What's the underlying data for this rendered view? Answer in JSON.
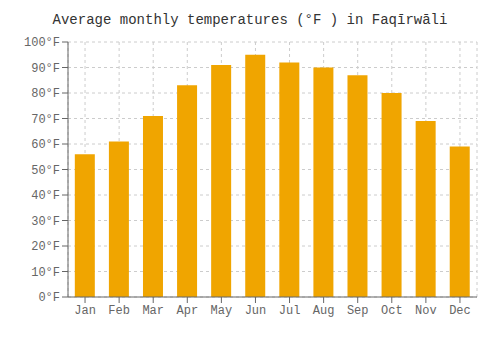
{
  "chart_data": {
    "type": "bar",
    "title": "Average monthly temperatures (°F ) in Faqīrwāli",
    "categories": [
      "Jan",
      "Feb",
      "Mar",
      "Apr",
      "May",
      "Jun",
      "Jul",
      "Aug",
      "Sep",
      "Oct",
      "Nov",
      "Dec"
    ],
    "values": [
      56,
      61,
      71,
      83,
      91,
      95,
      92,
      90,
      87,
      80,
      69,
      59
    ],
    "color": "#F0A500",
    "ylim": [
      0,
      100
    ],
    "yticks": [
      {
        "value": 0,
        "label": "0°F"
      },
      {
        "value": 10,
        "label": "10°F"
      },
      {
        "value": 20,
        "label": "20°F"
      },
      {
        "value": 30,
        "label": "30°F"
      },
      {
        "value": 40,
        "label": "40°F"
      },
      {
        "value": 50,
        "label": "50°F"
      },
      {
        "value": 60,
        "label": "60°F"
      },
      {
        "value": 70,
        "label": "70°F"
      },
      {
        "value": 80,
        "label": "80°F"
      },
      {
        "value": 90,
        "label": "90°F"
      },
      {
        "value": 100,
        "label": "100°F"
      }
    ],
    "grid": true
  }
}
